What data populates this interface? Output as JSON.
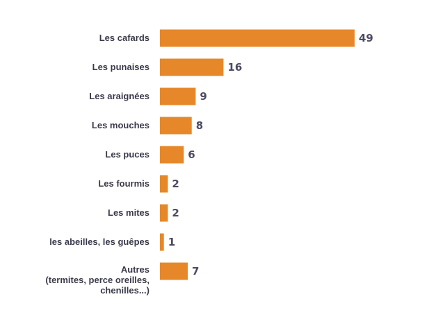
{
  "chart_data": {
    "type": "bar",
    "orientation": "horizontal",
    "categories": [
      [
        "Les cafards"
      ],
      [
        "Les punaises"
      ],
      [
        "Les araignées"
      ],
      [
        "Les mouches"
      ],
      [
        "Les puces"
      ],
      [
        "Les fourmis"
      ],
      [
        "Les mites"
      ],
      [
        "les abeilles, les guêpes"
      ],
      [
        "Autres",
        "(termites, perce oreilles,",
        "chenilles...)"
      ]
    ],
    "values": [
      49,
      16,
      9,
      8,
      6,
      2,
      2,
      1,
      7
    ],
    "bar_color": "#e6882a",
    "xlim": [
      0,
      49
    ],
    "grid": false,
    "data_labels": true
  }
}
